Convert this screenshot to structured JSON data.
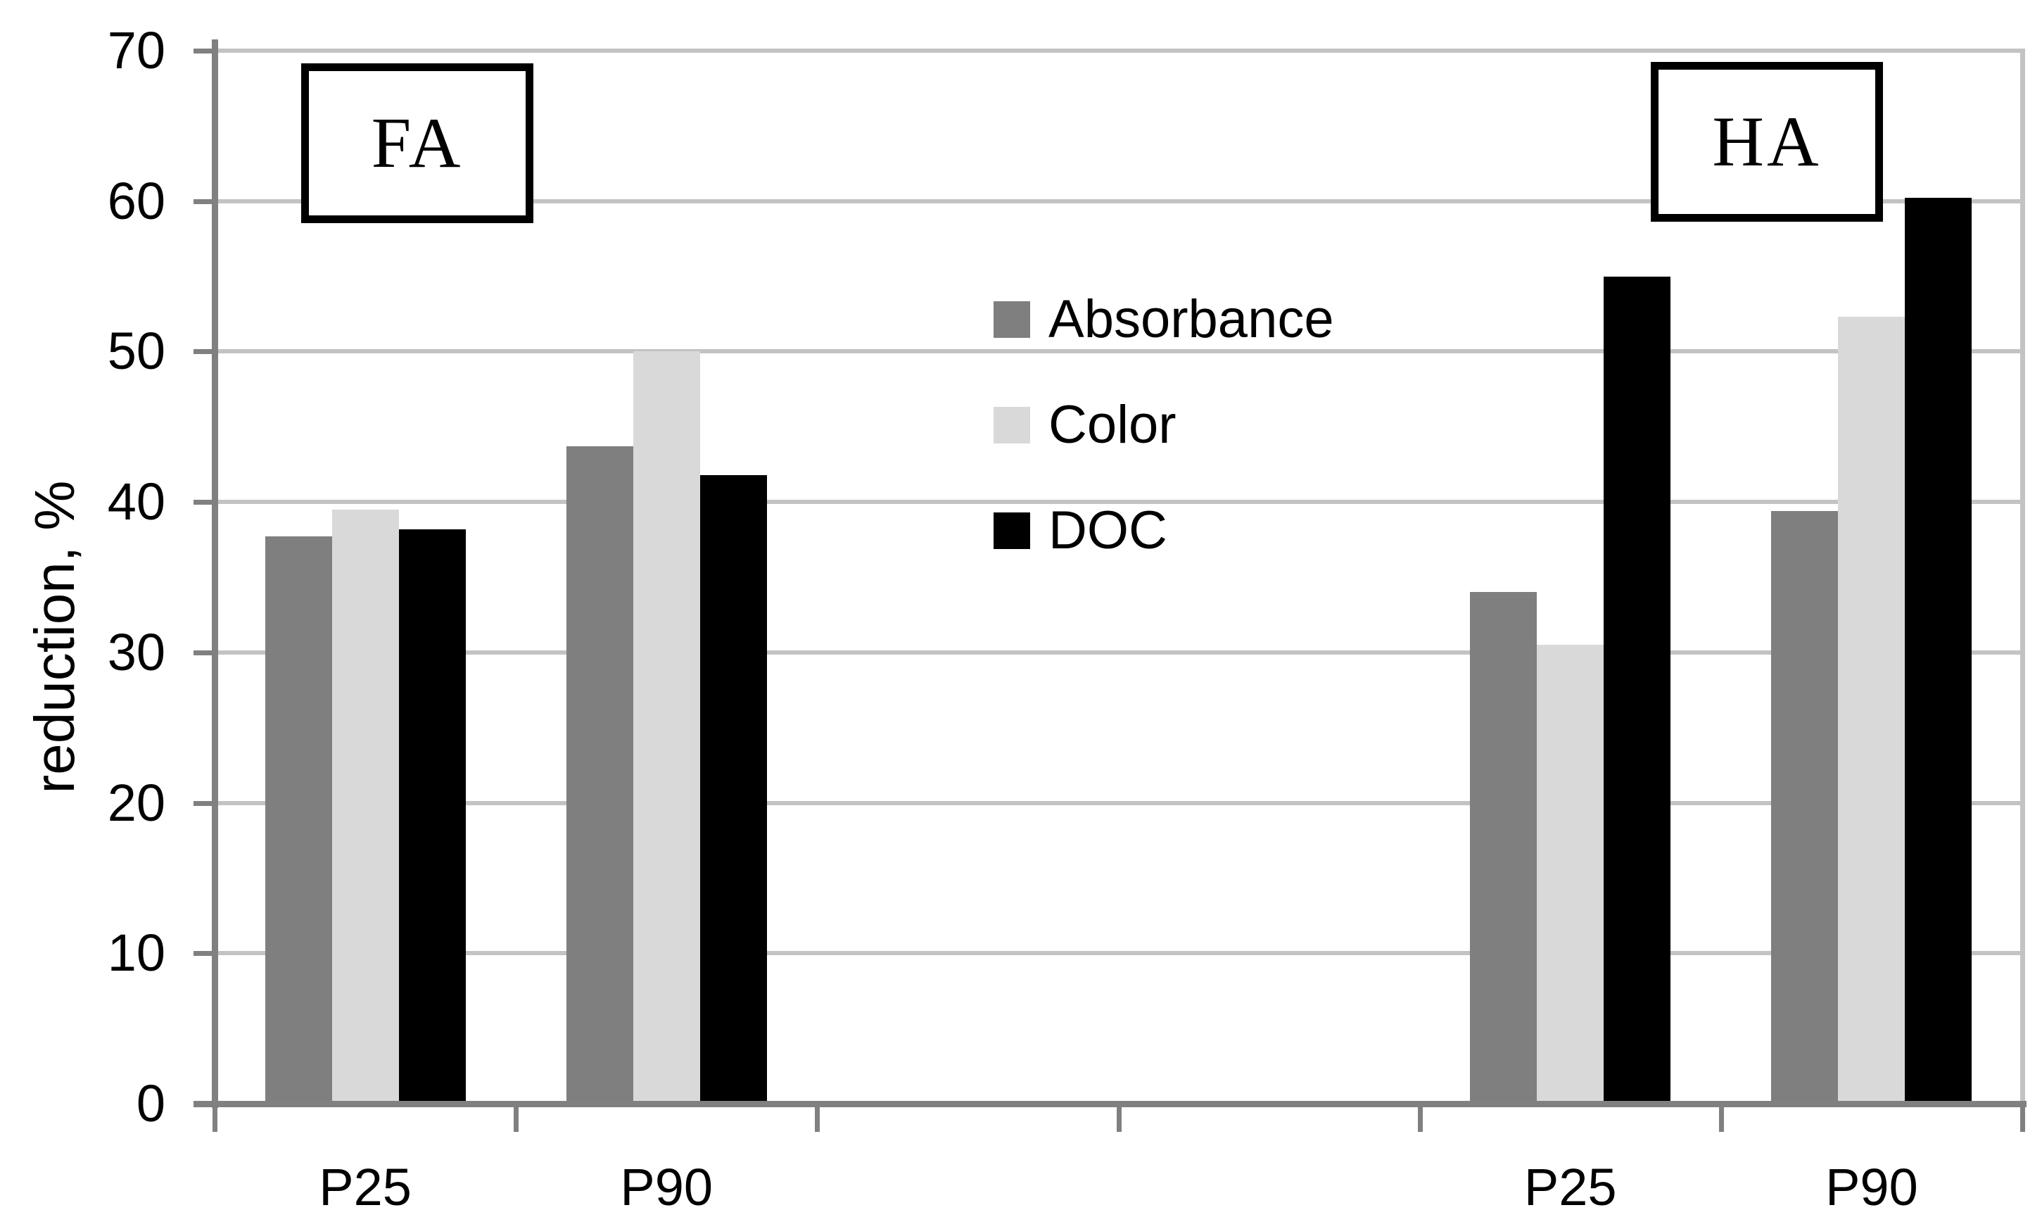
{
  "chart_data": {
    "type": "bar",
    "title": "",
    "ylabel": "reduction, %",
    "xlabel": "",
    "ylim": [
      0,
      70
    ],
    "yticks": [
      0,
      10,
      20,
      30,
      40,
      50,
      60,
      70
    ],
    "grid": "horizontal",
    "legend_position": "center-of-plot",
    "categories": [
      "P25",
      "P90",
      "",
      "",
      "P25",
      "P90"
    ],
    "series": [
      {
        "name": "Absorbance",
        "color": "#7f7f7f",
        "values": [
          37.7,
          43.7,
          null,
          null,
          34.0,
          39.4
        ]
      },
      {
        "name": "Color",
        "color": "#d9d9d9",
        "values": [
          39.5,
          50.0,
          null,
          null,
          30.5,
          52.3
        ]
      },
      {
        "name": "DOC",
        "color": "#000000",
        "values": [
          38.2,
          41.8,
          null,
          null,
          55.0,
          60.2
        ]
      }
    ],
    "annotations": [
      {
        "text": "FA",
        "over_categories": [
          "P25",
          "P90"
        ],
        "side": "left"
      },
      {
        "text": "HA",
        "over_categories": [
          "P25",
          "P90"
        ],
        "side": "right"
      }
    ]
  },
  "colors": {
    "background": "#ffffff",
    "axis": "#808080",
    "gridline": "#c3c3c3",
    "text": "#000000"
  }
}
